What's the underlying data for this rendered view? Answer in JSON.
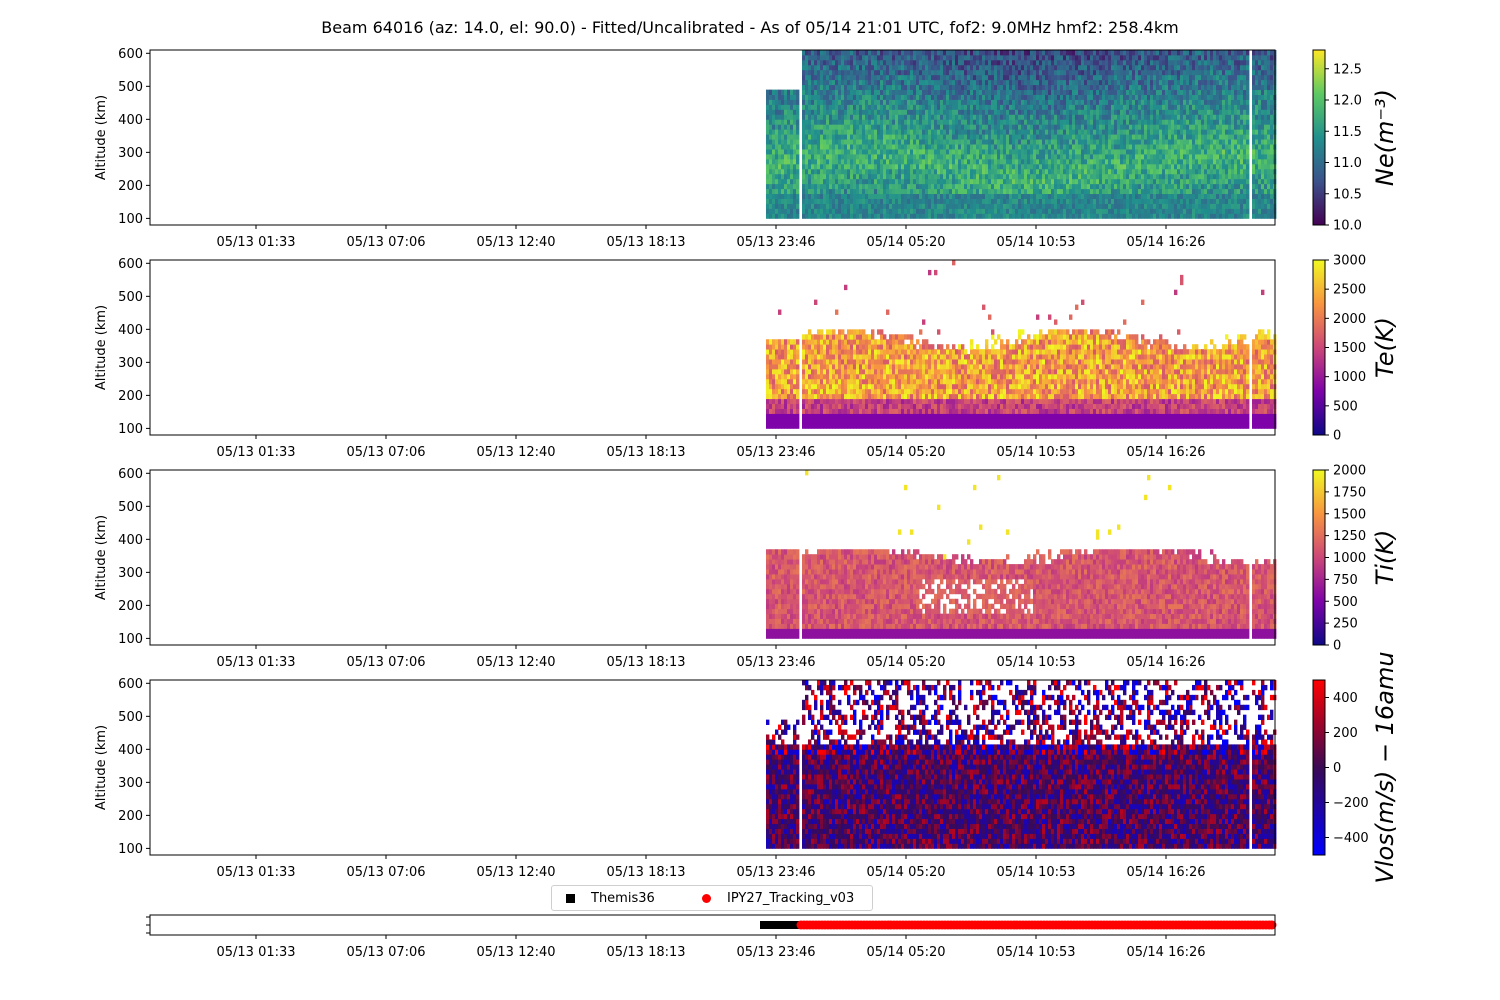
{
  "title": "Beam 64016 (az: 14.0, el: 90.0) - Fitted/Uncalibrated - As of 05/14 21:01 UTC, fof2: 9.0MHz  hmf2: 258.4km",
  "x_ticks": [
    "05/13 01:33",
    "05/13 07:06",
    "05/13 12:40",
    "05/13 18:13",
    "05/13 23:46",
    "05/14 05:20",
    "05/14 10:53",
    "05/14 16:26"
  ],
  "y_ticks": [
    "100",
    "200",
    "300",
    "400",
    "500",
    "600"
  ],
  "y_label": "Altitude (km)",
  "legend": [
    {
      "label": "Themis36",
      "color": "#000000",
      "marker": "square"
    },
    {
      "label": "IPY27_Tracking_v03",
      "color": "#ff0000",
      "marker": "circle"
    }
  ],
  "chart_data": [
    {
      "type": "heatmap",
      "quantity": "Ne",
      "colorbar_label": "Ne(m⁻³)",
      "colormap": "viridis",
      "clim": [
        10.0,
        12.8
      ],
      "colorbar_ticks": [
        "10.0",
        "10.5",
        "11.0",
        "11.5",
        "12.0",
        "12.5"
      ],
      "colorbar_tick_values": [
        10.0,
        10.5,
        11.0,
        11.5,
        12.0,
        12.5
      ],
      "ylim": [
        100,
        600
      ],
      "data_start": "05/13 23:46",
      "description_values": {
        "peak_altitude_km": 250,
        "typical_peak": 11.9
      }
    },
    {
      "type": "heatmap",
      "quantity": "Te",
      "colorbar_label": "Te(K)",
      "colormap": "plasma",
      "clim": [
        0,
        3000
      ],
      "colorbar_ticks": [
        "0",
        "500",
        "1000",
        "1500",
        "2000",
        "2500",
        "3000"
      ],
      "colorbar_tick_values": [
        0,
        500,
        1000,
        1500,
        2000,
        2500,
        3000
      ],
      "ylim": [
        100,
        600
      ],
      "data_start": "05/13 23:46"
    },
    {
      "type": "heatmap",
      "quantity": "Ti",
      "colorbar_label": "Ti(K)",
      "colormap": "plasma",
      "clim": [
        0,
        2000
      ],
      "colorbar_ticks": [
        "0",
        "250",
        "500",
        "750",
        "1000",
        "1250",
        "1500",
        "1750",
        "2000"
      ],
      "colorbar_tick_values": [
        0,
        250,
        500,
        750,
        1000,
        1250,
        1500,
        1750,
        2000
      ],
      "ylim": [
        100,
        600
      ],
      "data_start": "05/13 23:46"
    },
    {
      "type": "heatmap",
      "quantity": "Vlos",
      "colorbar_label": "Vlos(m/s) − 16amu",
      "colormap": "bwr",
      "clim": [
        -500,
        500
      ],
      "colorbar_ticks": [
        "−400",
        "−200",
        "0",
        "200",
        "400"
      ],
      "colorbar_tick_values": [
        -400,
        -200,
        0,
        200,
        400
      ],
      "ylim": [
        100,
        600
      ],
      "data_start": "05/13 23:46"
    },
    {
      "type": "scatter",
      "quantity": "experiment_mode",
      "series": [
        {
          "name": "Themis36",
          "x_start": "05/13 23:46",
          "x_end": "05/14 00:20"
        },
        {
          "name": "IPY27_Tracking_v03",
          "x_start": "05/14 00:20",
          "x_end": "05/14 21:01"
        }
      ]
    }
  ]
}
